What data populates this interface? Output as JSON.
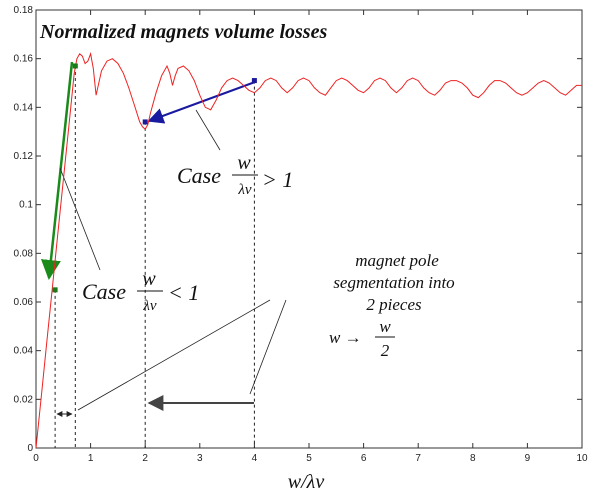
{
  "chart_data": {
    "type": "line",
    "title": "Normalized magnets volume losses",
    "xlabel": "w/λν",
    "xlim": [
      0,
      10
    ],
    "ylim": [
      0,
      0.18
    ],
    "xticks": [
      "0",
      "1",
      "2",
      "3",
      "4",
      "5",
      "6",
      "7",
      "8",
      "9",
      "10"
    ],
    "yticks": [
      "0",
      "0.02",
      "0.04",
      "0.06",
      "0.08",
      "0.1",
      "0.12",
      "0.14",
      "0.16",
      "0.18"
    ],
    "series": [
      {
        "color": "#ee2222",
        "x": [
          0,
          0.1,
          0.2,
          0.3,
          0.4,
          0.5,
          0.6,
          0.7,
          0.75,
          0.8,
          0.85,
          0.9,
          0.95,
          1.0,
          1.05,
          1.1,
          1.2,
          1.3,
          1.4,
          1.5,
          1.6,
          1.7,
          1.8,
          1.9,
          1.95,
          2.0,
          2.05,
          2.1,
          2.2,
          2.3,
          2.4,
          2.45,
          2.5,
          2.55,
          2.6,
          2.7,
          2.8,
          2.9,
          3.0,
          3.1,
          3.2,
          3.3,
          3.4,
          3.5,
          3.6,
          3.7,
          3.8,
          3.9,
          4.0,
          4.1,
          4.2,
          4.3,
          4.4,
          4.5,
          4.6,
          4.7,
          4.8,
          4.9,
          5.0,
          5.1,
          5.2,
          5.3,
          5.4,
          5.5,
          5.6,
          5.7,
          5.8,
          5.9,
          6.0,
          6.1,
          6.2,
          6.3,
          6.4,
          6.5,
          6.6,
          6.7,
          6.8,
          6.9,
          7.0,
          7.1,
          7.2,
          7.3,
          7.4,
          7.5,
          7.6,
          7.7,
          7.8,
          7.9,
          8.0,
          8.1,
          8.2,
          8.3,
          8.4,
          8.5,
          8.6,
          8.7,
          8.8,
          8.9,
          9.0,
          9.1,
          9.2,
          9.3,
          9.4,
          9.5,
          9.6,
          9.7,
          9.8,
          9.9,
          10.0
        ],
        "y": [
          0.0,
          0.022,
          0.044,
          0.066,
          0.088,
          0.11,
          0.132,
          0.154,
          0.16,
          0.162,
          0.161,
          0.158,
          0.159,
          0.162,
          0.156,
          0.145,
          0.155,
          0.159,
          0.16,
          0.158,
          0.154,
          0.148,
          0.141,
          0.134,
          0.132,
          0.131,
          0.133,
          0.138,
          0.146,
          0.153,
          0.157,
          0.154,
          0.149,
          0.153,
          0.156,
          0.157,
          0.155,
          0.151,
          0.145,
          0.14,
          0.139,
          0.143,
          0.148,
          0.151,
          0.152,
          0.151,
          0.149,
          0.147,
          0.146,
          0.148,
          0.151,
          0.152,
          0.151,
          0.148,
          0.146,
          0.148,
          0.151,
          0.152,
          0.151,
          0.148,
          0.146,
          0.145,
          0.148,
          0.151,
          0.152,
          0.151,
          0.149,
          0.147,
          0.146,
          0.148,
          0.151,
          0.152,
          0.151,
          0.148,
          0.146,
          0.148,
          0.151,
          0.152,
          0.151,
          0.148,
          0.146,
          0.145,
          0.147,
          0.15,
          0.151,
          0.151,
          0.15,
          0.148,
          0.145,
          0.144,
          0.146,
          0.149,
          0.151,
          0.151,
          0.15,
          0.148,
          0.146,
          0.145,
          0.146,
          0.148,
          0.15,
          0.151,
          0.15,
          0.148,
          0.146,
          0.145,
          0.147,
          0.149,
          0.149
        ]
      }
    ],
    "markers": [
      {
        "x": 0.35,
        "y": 0.065,
        "color": "#1a7a1a"
      },
      {
        "x": 0.72,
        "y": 0.157,
        "color": "#1a7a1a"
      },
      {
        "x": 2.0,
        "y": 0.134,
        "color": "#1a1a9a"
      },
      {
        "x": 4.0,
        "y": 0.151,
        "color": "#1a1a9a"
      }
    ],
    "dashed_lines_x": [
      0.35,
      0.72,
      2.0,
      4.0
    ],
    "annotations": {
      "case_gt": {
        "prefix": "Case",
        "num": "w",
        "den": "λν",
        "rel": "> 1"
      },
      "case_lt": {
        "prefix": "Case",
        "num": "w",
        "den": "λν",
        "rel": "< 1"
      },
      "segmentation": [
        "magnet pole",
        "segmentation into",
        "2 pieces"
      ],
      "formula": {
        "lhs": "w →",
        "num": "w",
        "den": "2"
      }
    },
    "colors": {
      "curve": "#ee2222",
      "green_arrow": "#1a8a1a",
      "blue_arrow": "#1a1aa0",
      "gray_arrow": "#555555",
      "frame": "#333333"
    }
  }
}
